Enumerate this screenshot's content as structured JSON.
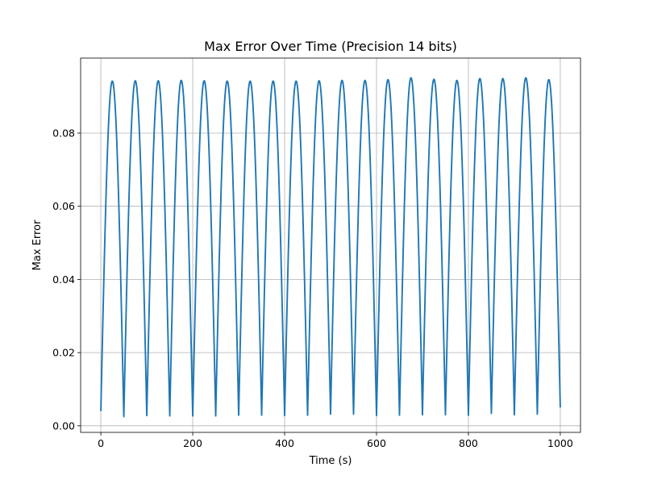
{
  "chart_data": {
    "type": "line",
    "title": "Max Error Over Time (Precision 14 bits)",
    "xlabel": "Time (s)",
    "ylabel": "Max Error",
    "xlim": [
      -44,
      1044
    ],
    "ylim": [
      -0.0018,
      0.1005
    ],
    "xticks": [
      0,
      200,
      400,
      600,
      800,
      1000
    ],
    "xtick_labels": [
      "0",
      "200",
      "400",
      "600",
      "800",
      "1000"
    ],
    "yticks": [
      0.0,
      0.02,
      0.04,
      0.06,
      0.08
    ],
    "ytick_labels": [
      "0.00",
      "0.02",
      "0.04",
      "0.06",
      "0.08"
    ],
    "grid": true,
    "series": [
      {
        "color": "#1f77b4",
        "period": 50,
        "x_start": 0,
        "x_end": 1000,
        "start_value": 0.004,
        "end_value": 0.005,
        "peak_values": [
          0.0942,
          0.0943,
          0.0943,
          0.0944,
          0.0943,
          0.0942,
          0.0942,
          0.0942,
          0.0942,
          0.0943,
          0.0944,
          0.0944,
          0.0946,
          0.0951,
          0.0947,
          0.0944,
          0.0949,
          0.0949,
          0.0951,
          0.0946
        ],
        "trough_values": [
          0.0025,
          0.0028,
          0.0027,
          0.0027,
          0.0027,
          0.0029,
          0.0029,
          0.0028,
          0.0029,
          0.0032,
          0.0032,
          0.0028,
          0.0029,
          0.003,
          0.003,
          0.0029,
          0.0034,
          0.003,
          0.0032
        ]
      }
    ]
  }
}
